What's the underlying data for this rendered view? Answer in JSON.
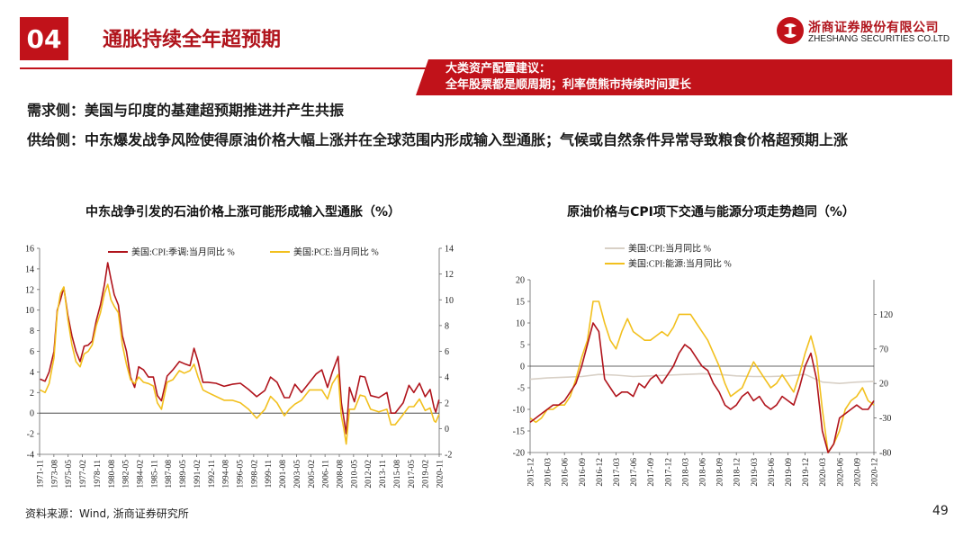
{
  "header": {
    "section_number": "04",
    "title": "通胀持续全年超预期",
    "logo_cn": "浙商证券股份有限公司",
    "logo_en": "ZHESHANG SECURITIES CO.LTD"
  },
  "recommendation": {
    "line1": "大类资产配置建议：",
    "line2": "全年股票都是顺周期；利率债熊市持续时间更长"
  },
  "body": {
    "demand": "需求侧：美国与印度的基建超预期推进并产生共振",
    "supply": "供给侧：中东爆发战争风险使得原油价格大幅上涨并在全球范围内形成输入型通胀；气候或自然条件异常导致粮食价格超预期上涨"
  },
  "footer": {
    "source": "资料来源：Wind, 浙商证券研究所",
    "page": "49"
  },
  "colors": {
    "brand_red": "#c1121a",
    "cpi_red": "#b0141c",
    "pce_yellow": "#f2c01e",
    "cpi_gray": "#d8d0c6"
  },
  "chart_data": [
    {
      "type": "line",
      "title": "中东战争引发的石油价格上涨可能形成输入型通胀（%）",
      "xlabel": "",
      "ylabel": "",
      "x_tick_labels": [
        "1971-11",
        "1973-08",
        "1975-05",
        "1977-02",
        "1978-11",
        "1980-08",
        "1982-05",
        "1984-02",
        "1985-11",
        "1987-08",
        "1989-05",
        "1991-02",
        "1992-11",
        "1994-08",
        "1996-05",
        "1998-02",
        "1999-11",
        "2001-08",
        "2003-05",
        "2005-02",
        "2006-11",
        "2008-08",
        "2010-05",
        "2012-02",
        "2013-11",
        "2015-08",
        "2017-05",
        "2019-02",
        "2020-11"
      ],
      "ylim_left": [
        -4,
        16
      ],
      "yticks_left": [
        -4,
        -2,
        0,
        2,
        4,
        6,
        8,
        10,
        12,
        14,
        16
      ],
      "ylim_right": [
        -2,
        14
      ],
      "yticks_right": [
        -2,
        0,
        2,
        4,
        6,
        8,
        10,
        12,
        14
      ],
      "x_range": [
        1971.83,
        2020.92
      ],
      "series": [
        {
          "name": "美国:CPI:季调:当月同比 %",
          "axis": "left",
          "color": "#b0141c",
          "x": [
            1971.9,
            1972.5,
            1973.0,
            1973.6,
            1974.0,
            1974.4,
            1974.8,
            1975.3,
            1975.8,
            1976.3,
            1976.8,
            1977.3,
            1977.8,
            1978.3,
            1978.8,
            1979.3,
            1979.8,
            1980.2,
            1980.6,
            1981.0,
            1981.5,
            1982.0,
            1982.5,
            1983.0,
            1983.5,
            1984.0,
            1984.6,
            1985.2,
            1985.8,
            1986.3,
            1986.8,
            1987.5,
            1988.2,
            1989.0,
            1989.6,
            1990.3,
            1990.8,
            1991.3,
            1991.9,
            1992.5,
            1993.5,
            1994.5,
            1995.5,
            1996.5,
            1997.5,
            1998.5,
            1999.5,
            2000.2,
            2001.0,
            2001.9,
            2002.5,
            2003.2,
            2004.0,
            2005.0,
            2005.8,
            2006.5,
            2007.2,
            2007.8,
            2008.5,
            2008.9,
            2009.2,
            2009.5,
            2009.9,
            2010.5,
            2011.2,
            2011.8,
            2012.5,
            2013.5,
            2014.5,
            2015.0,
            2015.5,
            2016.5,
            2017.2,
            2017.8,
            2018.5,
            2019.2,
            2019.8,
            2020.3,
            2020.5,
            2020.9
          ],
          "values": [
            3.3,
            3.1,
            4.0,
            6.0,
            10.0,
            11.0,
            12.2,
            9.5,
            7.5,
            6.0,
            5.0,
            6.5,
            6.6,
            7.0,
            9.0,
            10.5,
            12.5,
            14.6,
            13.0,
            11.5,
            10.5,
            7.5,
            6.0,
            3.5,
            2.5,
            4.5,
            4.2,
            3.5,
            3.5,
            1.7,
            1.2,
            3.6,
            4.2,
            5.0,
            4.8,
            4.6,
            6.3,
            5.0,
            3.0,
            3.0,
            2.9,
            2.6,
            2.8,
            2.9,
            2.3,
            1.6,
            2.2,
            3.5,
            3.0,
            1.5,
            1.5,
            2.8,
            2.0,
            3.0,
            3.8,
            4.2,
            2.5,
            4.0,
            5.5,
            1.0,
            -0.5,
            -2.0,
            2.5,
            1.1,
            3.6,
            3.5,
            1.7,
            1.5,
            2.0,
            0.0,
            0.0,
            1.0,
            2.7,
            2.0,
            2.9,
            1.6,
            2.3,
            0.5,
            0.1,
            1.3
          ]
        },
        {
          "name": "美国:PCE:当月同比 %",
          "axis": "right",
          "color": "#f2c01e",
          "x": [
            1971.9,
            1972.5,
            1973.0,
            1973.6,
            1974.0,
            1974.4,
            1974.8,
            1975.3,
            1975.8,
            1976.3,
            1976.8,
            1977.3,
            1977.8,
            1978.3,
            1978.8,
            1979.3,
            1979.8,
            1980.2,
            1980.6,
            1981.0,
            1981.5,
            1982.0,
            1982.5,
            1983.0,
            1983.5,
            1984.0,
            1984.6,
            1985.2,
            1985.8,
            1986.3,
            1986.8,
            1987.5,
            1988.2,
            1989.0,
            1989.6,
            1990.3,
            1990.8,
            1991.3,
            1991.9,
            1992.5,
            1993.5,
            1994.5,
            1995.5,
            1996.5,
            1997.5,
            1998.5,
            1999.5,
            2000.2,
            2001.0,
            2001.9,
            2002.5,
            2003.2,
            2004.0,
            2005.0,
            2005.8,
            2006.5,
            2007.2,
            2007.8,
            2008.5,
            2008.9,
            2009.2,
            2009.5,
            2009.9,
            2010.5,
            2011.2,
            2011.8,
            2012.5,
            2013.5,
            2014.5,
            2015.0,
            2015.5,
            2016.5,
            2017.2,
            2017.8,
            2018.5,
            2019.2,
            2019.8,
            2020.3,
            2020.5,
            2020.9
          ],
          "values": [
            3.0,
            2.8,
            3.5,
            5.5,
            9.0,
            10.5,
            11.0,
            8.5,
            6.5,
            5.2,
            4.8,
            5.8,
            6.0,
            6.5,
            8.0,
            9.0,
            10.5,
            11.2,
            10.0,
            9.5,
            9.0,
            6.5,
            5.0,
            3.8,
            3.5,
            4.0,
            3.6,
            3.5,
            3.3,
            2.0,
            1.5,
            3.6,
            3.8,
            4.5,
            4.3,
            4.5,
            5.0,
            4.0,
            3.0,
            2.8,
            2.5,
            2.2,
            2.2,
            2.0,
            1.5,
            0.8,
            1.5,
            2.5,
            2.0,
            1.0,
            1.5,
            1.9,
            2.2,
            3.0,
            3.0,
            3.0,
            2.3,
            3.5,
            4.2,
            1.0,
            0.0,
            -1.2,
            1.5,
            1.5,
            2.6,
            2.5,
            1.5,
            1.3,
            1.5,
            0.3,
            0.3,
            1.1,
            1.7,
            1.7,
            2.3,
            1.4,
            1.6,
            0.6,
            0.5,
            1.1
          ]
        }
      ]
    },
    {
      "type": "line",
      "title": "原油价格与CPI项下交通与能源分项走势趋同（%）",
      "xlabel": "",
      "ylabel": "",
      "x_tick_labels": [
        "2015-12",
        "2016-03",
        "2016-06",
        "2016-09",
        "2016-12",
        "2017-03",
        "2017-06",
        "2017-09",
        "2017-12",
        "2018-03",
        "2018-06",
        "2018-09",
        "2018-12",
        "2019-03",
        "2019-06",
        "2019-09",
        "2019-12",
        "2020-03",
        "2020-06",
        "2020-09",
        "2020-12"
      ],
      "ylim_left": [
        -20,
        20
      ],
      "yticks_left": [
        -20,
        -15,
        -10,
        -5,
        0,
        5,
        10,
        15,
        20
      ],
      "ylim_right": [
        -80,
        170
      ],
      "yticks_right": [
        -80,
        -30,
        20,
        70,
        120
      ],
      "x_range": [
        0,
        60
      ],
      "x_unit": "months since 2015-12",
      "series": [
        {
          "name": "美国:CPI:当月同比 %",
          "axis": "right",
          "color": "#d8d0c6",
          "x": [
            0,
            3,
            6,
            9,
            12,
            15,
            18,
            21,
            24,
            27,
            30,
            33,
            36,
            39,
            42,
            45,
            48,
            51,
            54,
            57,
            60
          ],
          "values": [
            26,
            28,
            29,
            30,
            33,
            32,
            30,
            31,
            32,
            33,
            34,
            33,
            31,
            30,
            30,
            31,
            33,
            22,
            20,
            22,
            23
          ]
        },
        {
          "name": "美国:CPI:能源:当月同比 %",
          "axis": "left",
          "color": "#f2c01e",
          "x": [
            0,
            1,
            2,
            3,
            4,
            5,
            6,
            7,
            8,
            9,
            10,
            11,
            12,
            13,
            14,
            15,
            16,
            17,
            18,
            19,
            20,
            21,
            22,
            23,
            24,
            25,
            26,
            27,
            28,
            29,
            30,
            31,
            32,
            33,
            34,
            35,
            36,
            37,
            38,
            39,
            40,
            41,
            42,
            43,
            44,
            45,
            46,
            47,
            48,
            49,
            50,
            51,
            52,
            53,
            54,
            55,
            56,
            57,
            58,
            59,
            60
          ],
          "values": [
            -12,
            -13,
            -12,
            -10,
            -10,
            -9,
            -9,
            -7,
            -3,
            2,
            6,
            15,
            15,
            10,
            6,
            4,
            8,
            11,
            8,
            7,
            6,
            6,
            7,
            8,
            7,
            9,
            12,
            12,
            12,
            10,
            8,
            6,
            3,
            0,
            -4,
            -7,
            -6,
            -5,
            -2,
            1,
            -1,
            -3,
            -5,
            -4,
            -2,
            -4,
            -6,
            -2,
            3,
            7,
            2,
            -10,
            -20,
            -18,
            -15,
            -10,
            -8,
            -7,
            -5,
            -8,
            -9
          ]
        },
        {
          "name": "原油价格",
          "axis": "left",
          "color": "#b0141c",
          "x": [
            0,
            1,
            2,
            3,
            4,
            5,
            6,
            7,
            8,
            9,
            10,
            11,
            12,
            13,
            14,
            15,
            16,
            17,
            18,
            19,
            20,
            21,
            22,
            23,
            24,
            25,
            26,
            27,
            28,
            29,
            30,
            31,
            32,
            33,
            34,
            35,
            36,
            37,
            38,
            39,
            40,
            41,
            42,
            43,
            44,
            45,
            46,
            47,
            48,
            49,
            50,
            51,
            52,
            53,
            54,
            55,
            56,
            57,
            58,
            59,
            60
          ],
          "values": [
            -13,
            -12,
            -11,
            -10,
            -9,
            -9,
            -8,
            -6,
            -4,
            0,
            5,
            10,
            8,
            -3,
            -5,
            -7,
            -6,
            -6,
            -7,
            -4,
            -5,
            -3,
            -2,
            -4,
            -2,
            0,
            3,
            5,
            4,
            2,
            0,
            -1,
            -4,
            -6,
            -9,
            -10,
            -9,
            -7,
            -6,
            -8,
            -7,
            -9,
            -10,
            -9,
            -7,
            -8,
            -9,
            -5,
            0,
            3,
            -3,
            -15,
            -20,
            -18,
            -12,
            -11,
            -10,
            -9,
            -10,
            -10,
            -8
          ]
        }
      ]
    }
  ]
}
